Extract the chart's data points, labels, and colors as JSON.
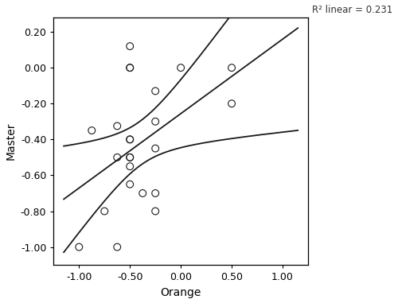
{
  "x": [
    -1.0,
    -0.875,
    -0.75,
    -0.625,
    -0.625,
    -0.625,
    -0.5,
    -0.5,
    -0.5,
    -0.5,
    -0.5,
    -0.5,
    -0.5,
    -0.5,
    -0.5,
    -0.375,
    -0.25,
    -0.25,
    -0.25,
    -0.25,
    0.0,
    -0.25,
    0.5,
    0.5
  ],
  "y": [
    -1.0,
    -0.35,
    -0.8,
    -0.325,
    -0.5,
    -1.0,
    0.12,
    0.0,
    0.0,
    -0.4,
    -0.4,
    -0.5,
    -0.5,
    -0.55,
    -0.65,
    -0.7,
    -0.3,
    -0.45,
    -0.7,
    -0.8,
    0.0,
    -0.13,
    0.0,
    -0.2
  ],
  "xlabel": "Orange",
  "ylabel": "Master",
  "r2_label": "R² linear = 0.231",
  "xlim": [
    -1.25,
    1.25
  ],
  "ylim": [
    -1.1,
    0.28
  ],
  "xticks": [
    -1.0,
    -0.5,
    0.0,
    0.5,
    1.0
  ],
  "yticks": [
    -1.0,
    -0.8,
    -0.6,
    -0.4,
    -0.2,
    0.0,
    0.2
  ],
  "line_color": "#1a1a1a",
  "scatter_facecolor": "none",
  "scatter_edgecolor": "#1a1a1a",
  "scatter_size": 40,
  "background_color": "#ffffff",
  "font_size_label": 10,
  "font_size_tick": 9,
  "font_size_annotation": 8.5
}
